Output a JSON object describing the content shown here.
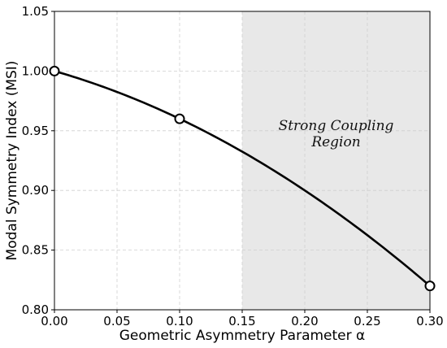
{
  "chart_data": {
    "type": "line",
    "title": "",
    "xlabel": "Geometric Asymmetry Parameter α",
    "ylabel": "Modal Symmetry Index (MSI)",
    "xlim": [
      0.0,
      0.3
    ],
    "ylim": [
      0.8,
      1.05
    ],
    "x_ticks": [
      0.0,
      0.05,
      0.1,
      0.15,
      0.2,
      0.25,
      0.3
    ],
    "x_tick_labels": [
      "0.00",
      "0.05",
      "0.10",
      "0.15",
      "0.20",
      "0.25",
      "0.30"
    ],
    "y_ticks": [
      0.8,
      0.85,
      0.9,
      0.95,
      1.0,
      1.05
    ],
    "y_tick_labels": [
      "0.80",
      "0.85",
      "0.90",
      "0.95",
      "1.00",
      "1.05"
    ],
    "grid": true,
    "series": [
      {
        "x": [
          0.0,
          0.1,
          0.3
        ],
        "y": [
          1.0,
          0.96,
          0.82
        ],
        "color": "#000000",
        "smooth_curve": true,
        "markers": "open-circle"
      }
    ],
    "shaded_region": {
      "x_range": [
        0.15,
        0.3
      ],
      "color": "#e8e8e8",
      "label_lines": [
        "Strong Coupling",
        "Region"
      ]
    }
  }
}
